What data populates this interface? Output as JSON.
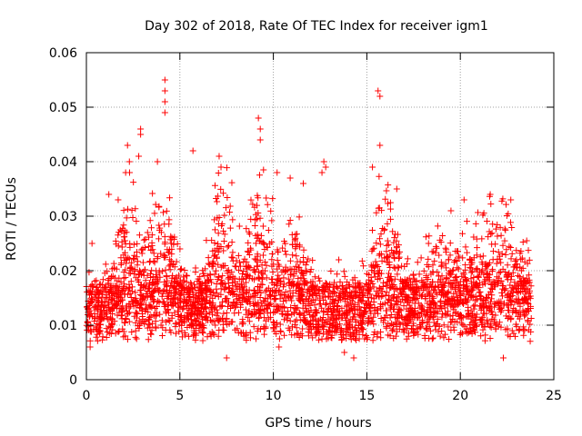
{
  "chart_data": {
    "type": "scatter",
    "title": "Day 302 of 2018, Rate Of TEC Index for receiver igm1",
    "xlabel": "GPS time / hours",
    "ylabel": "ROTI / TECUs",
    "xlim": [
      0,
      25
    ],
    "ylim": [
      0,
      0.06
    ],
    "x_ticks": [
      0,
      5,
      10,
      15,
      20,
      25
    ],
    "x_tick_labels": [
      "0",
      "5",
      "10",
      "15",
      "20",
      "25"
    ],
    "y_ticks": [
      0,
      0.01,
      0.02,
      0.03,
      0.04,
      0.05,
      0.06
    ],
    "y_tick_labels": [
      "0",
      "0.01",
      "0.02",
      "0.03",
      "0.04",
      "0.05",
      "0.06"
    ],
    "grid": true,
    "marker": "plus",
    "series": [
      {
        "name": "ROTI",
        "color": "#ff0000",
        "x_range": [
          0,
          23.8
        ],
        "baseline_median": 0.012,
        "notable_points": [
          {
            "x": 4.2,
            "y": 0.055
          },
          {
            "x": 4.2,
            "y": 0.053
          },
          {
            "x": 4.2,
            "y": 0.051
          },
          {
            "x": 4.2,
            "y": 0.049
          },
          {
            "x": 15.6,
            "y": 0.053
          },
          {
            "x": 15.7,
            "y": 0.052
          },
          {
            "x": 15.7,
            "y": 0.043
          },
          {
            "x": 9.2,
            "y": 0.048
          },
          {
            "x": 9.3,
            "y": 0.046
          },
          {
            "x": 9.3,
            "y": 0.044
          },
          {
            "x": 2.9,
            "y": 0.046
          },
          {
            "x": 2.9,
            "y": 0.045
          },
          {
            "x": 2.8,
            "y": 0.041
          },
          {
            "x": 2.2,
            "y": 0.043
          },
          {
            "x": 2.3,
            "y": 0.04
          },
          {
            "x": 2.1,
            "y": 0.038
          },
          {
            "x": 5.7,
            "y": 0.042
          },
          {
            "x": 7.1,
            "y": 0.041
          },
          {
            "x": 7.2,
            "y": 0.039
          },
          {
            "x": 12.7,
            "y": 0.04
          },
          {
            "x": 12.8,
            "y": 0.039
          },
          {
            "x": 12.6,
            "y": 0.038
          },
          {
            "x": 15.3,
            "y": 0.039
          },
          {
            "x": 10.2,
            "y": 0.038
          },
          {
            "x": 10.9,
            "y": 0.037
          },
          {
            "x": 11.6,
            "y": 0.036
          },
          {
            "x": 16.6,
            "y": 0.035
          },
          {
            "x": 20.2,
            "y": 0.033
          },
          {
            "x": 21.6,
            "y": 0.034
          },
          {
            "x": 22.7,
            "y": 0.033
          },
          {
            "x": 19.5,
            "y": 0.031
          },
          {
            "x": 1.2,
            "y": 0.034
          },
          {
            "x": 1.7,
            "y": 0.033
          },
          {
            "x": 3.8,
            "y": 0.04
          },
          {
            "x": 0.3,
            "y": 0.025
          },
          {
            "x": 13.5,
            "y": 0.022
          },
          {
            "x": 18.3,
            "y": 0.025
          },
          {
            "x": 23.0,
            "y": 0.022
          },
          {
            "x": 23.6,
            "y": 0.018
          },
          {
            "x": 14.3,
            "y": 0.004
          },
          {
            "x": 22.3,
            "y": 0.004
          },
          {
            "x": 7.5,
            "y": 0.004
          },
          {
            "x": 13.8,
            "y": 0.005
          },
          {
            "x": 10.3,
            "y": 0.006
          },
          {
            "x": 0.2,
            "y": 0.006
          }
        ]
      }
    ],
    "plot_area_color": "#ffffff",
    "grid_color": "#a0a0a0",
    "axis_color": "#000000"
  }
}
